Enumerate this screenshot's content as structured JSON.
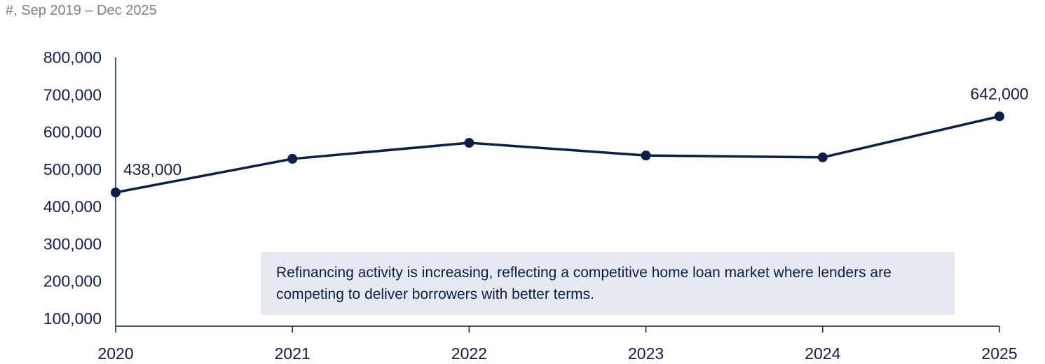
{
  "subtitle": "#, Sep 2019 – Dec 2025",
  "note": "Refinancing activity is increasing, reflecting a competitive home loan market where lenders are competing to deliver borrowers with better terms.",
  "colors": {
    "line": "#0c1f46",
    "text": "#0c1f46",
    "note_bg": "#e6e9ef",
    "subtitle": "#7b7f86"
  },
  "chart_data": {
    "type": "line",
    "x": [
      "2020",
      "2021",
      "2022",
      "2023",
      "2024",
      "2025"
    ],
    "series": [
      {
        "values": [
          438000,
          528000,
          571000,
          537000,
          532000,
          642000
        ]
      }
    ],
    "ylim": [
      100000,
      800000
    ],
    "yticks": [
      "800,000",
      "700,000",
      "600,000",
      "500,000",
      "400,000",
      "300,000",
      "200,000",
      "100,000"
    ],
    "ytick_values": [
      800000,
      700000,
      600000,
      500000,
      400000,
      300000,
      200000,
      100000
    ],
    "data_labels": [
      {
        "index": 0,
        "text": "438,000"
      },
      {
        "index": 5,
        "text": "642,000"
      }
    ],
    "grid": false
  }
}
